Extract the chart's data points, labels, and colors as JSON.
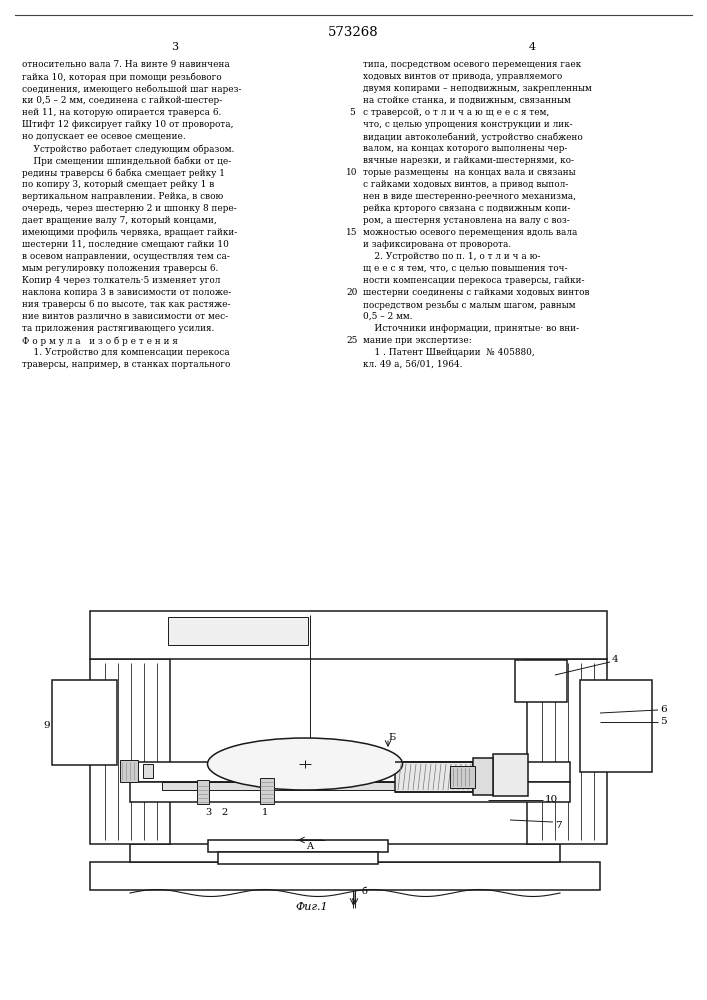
{
  "patent_number": "573268",
  "page_col_left": "3",
  "page_col_right": "4",
  "left_col_text": [
    "относительно вала 7. На винте 9 навинчена",
    "гайка 10, которая при помощи резьбового",
    "соединения, имеющего небольшой шаг нарез-",
    "ки 0,5 – 2 мм, соединена с гайкой-шестер-",
    "ней 11, на которую опирается траверса 6.",
    "Штифт 12 фиксирует гайку 10 от проворота,",
    "но допускает ее осевое смещение.",
    "    Устройство работает следующим образом.",
    "    При смещении шпиндельной бабки от це-",
    "редины траверсы 6 бабка смещает рейку 1",
    "по копиру 3, который смещает рейку 1 в",
    "вертикальном направлении. Рейка, в свою",
    "очередь, через шестерню 2 и шпонку 8 пере-",
    "дает вращение валу 7, который концами,",
    "имеющими профиль червяка, вращает гайки-",
    "шестерни 11, последние смещают гайки 10",
    "в осевом направлении, осуществляя тем са-",
    "мым регулировку положения траверсы 6.",
    "Копир 4 через толкатель·5 изменяет угол",
    "наклона копира 3 в зависимости от положе-",
    "ния траверсы 6 по высоте, так как растяже-",
    "ние винтов различно в зависимости от мес-",
    "та приложения растягивающего усилия.",
    "Ф о р м у л а   и з о б р е т е н и я",
    "    1. Устройство для компенсации перекоса",
    "траверсы, например, в станках портального"
  ],
  "right_col_text": [
    "типа, посредством осевого перемещения гаек",
    "ходовых винтов от привода, управляемого",
    "двумя копирами – неподвижным, закрепленным",
    "на стойке станка, и подвижным, связанным",
    "с траверсой, о т л и ч а ю щ е е с я тем,",
    "что, с целью упрощения конструкции и лик-",
    "видации автоколебаний, устройство снабжено",
    "валом, на концах которого выполнены чер-",
    "вячные нарезки, и гайками-шестернями, ко-",
    "торые размещены  на концах вала и связаны",
    "с гайками ходовых винтов, а привод выпол-",
    "нен в виде шестеренно-реечного механизма,",
    "рейка крторого связана с подвижным копи-",
    "ром, а шестерня установлена на валу с воз-",
    "можностью осевого перемещения вдоль вала",
    "и зафиксирована от проворота.",
    "    2. Устройство по п. 1, о т л и ч а ю-",
    "щ е е с я тем, что, с целью повышения точ-",
    "ности компенсации перекоса траверсы, гайки-",
    "шестерни соединены с гайками ходовых винтов",
    "посредством резьбы с малым шагом, равным",
    "0,5 – 2 мм.",
    "    Источники информации, принятые· во вни-",
    "мание при экспертизе:",
    "    1 . Патент Швейцарии  № 405880,",
    "кл. 49 а, 56/01, 1964."
  ],
  "fig_caption": "Фиг.1",
  "background_color": "#ffffff",
  "text_color": "#000000",
  "diagram_color": "#1a1a1a"
}
